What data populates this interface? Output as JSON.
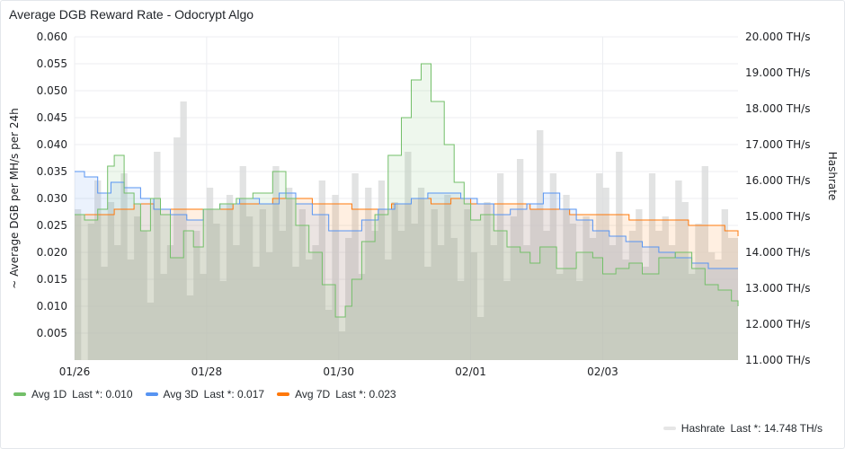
{
  "panel": {
    "title": "Average DGB Reward Rate - Odocrypt Algo"
  },
  "legend": {
    "items": [
      {
        "label": "Avg 1D",
        "stat": "Last *: 0.010",
        "color": "#73bf69"
      },
      {
        "label": "Avg 3D",
        "stat": "Last *: 0.017",
        "color": "#5794f2"
      },
      {
        "label": "Avg 7D",
        "stat": "Last *: 0.023",
        "color": "#ff780a"
      }
    ],
    "right_items": [
      {
        "label": "Hashrate",
        "stat": "Last *: 14.748 TH/s",
        "color": "#e6e6e6"
      }
    ]
  },
  "chart_data": {
    "type": "line",
    "x_tick_labels": [
      "01/26",
      "01/28",
      "01/30",
      "02/01",
      "02/03"
    ],
    "x_tick_pos": [
      0,
      2,
      4,
      6,
      8
    ],
    "x_range": [
      0,
      10.05
    ],
    "ylabel": "~ Average DGB per MH/s per 24h",
    "ylim": [
      0.0,
      0.06
    ],
    "y_ticks": [
      "0.005",
      "0.010",
      "0.015",
      "0.020",
      "0.025",
      "0.030",
      "0.035",
      "0.040",
      "0.045",
      "0.050",
      "0.055",
      "0.060"
    ],
    "y_tick_values": [
      0.005,
      0.01,
      0.015,
      0.02,
      0.025,
      0.03,
      0.035,
      0.04,
      0.045,
      0.05,
      0.055,
      0.06
    ],
    "y2label": "Hashrate",
    "y2lim": [
      11.0,
      20.0
    ],
    "y2_ticks": [
      "11.000 TH/s",
      "12.000 TH/s",
      "13.000 TH/s",
      "14.000 TH/s",
      "15.000 TH/s",
      "16.000 TH/s",
      "17.000 TH/s",
      "18.000 TH/s",
      "19.000 TH/s",
      "20.000 TH/s"
    ],
    "y2_tick_values": [
      11,
      12,
      13,
      14,
      15,
      16,
      17,
      18,
      19,
      20
    ],
    "series": [
      {
        "name": "Avg 1D",
        "axis": "left",
        "color": "#73bf69",
        "x": [
          0,
          0.15,
          0.35,
          0.5,
          0.6,
          0.75,
          0.9,
          1.0,
          1.15,
          1.3,
          1.45,
          1.65,
          1.8,
          1.95,
          2.2,
          2.45,
          2.7,
          3.0,
          3.2,
          3.35,
          3.55,
          3.75,
          3.95,
          4.1,
          4.2,
          4.35,
          4.55,
          4.75,
          4.95,
          5.1,
          5.25,
          5.4,
          5.6,
          5.75,
          5.9,
          6.0,
          6.15,
          6.35,
          6.55,
          6.75,
          6.9,
          7.05,
          7.3,
          7.6,
          7.85,
          8.0,
          8.2,
          8.4,
          8.6,
          8.85,
          9.1,
          9.35,
          9.55,
          9.75,
          9.95,
          10.05
        ],
        "y": [
          0.027,
          0.026,
          0.028,
          0.036,
          0.038,
          0.031,
          0.029,
          0.024,
          0.03,
          0.027,
          0.019,
          0.024,
          0.021,
          0.028,
          0.029,
          0.03,
          0.031,
          0.035,
          0.03,
          0.025,
          0.02,
          0.014,
          0.008,
          0.01,
          0.015,
          0.022,
          0.027,
          0.038,
          0.045,
          0.052,
          0.055,
          0.048,
          0.04,
          0.033,
          0.029,
          0.026,
          0.027,
          0.024,
          0.021,
          0.02,
          0.018,
          0.021,
          0.017,
          0.02,
          0.019,
          0.016,
          0.017,
          0.018,
          0.016,
          0.019,
          0.02,
          0.017,
          0.014,
          0.013,
          0.011,
          0.01
        ]
      },
      {
        "name": "Avg 3D",
        "axis": "left",
        "color": "#5794f2",
        "x": [
          0,
          0.15,
          0.35,
          0.55,
          0.75,
          1.0,
          1.2,
          1.45,
          1.7,
          1.95,
          2.2,
          2.5,
          2.8,
          3.1,
          3.35,
          3.6,
          3.85,
          4.1,
          4.35,
          4.6,
          4.85,
          5.1,
          5.35,
          5.6,
          5.85,
          6.1,
          6.35,
          6.6,
          6.85,
          7.1,
          7.35,
          7.6,
          7.85,
          8.1,
          8.35,
          8.6,
          8.85,
          9.1,
          9.35,
          9.6,
          9.85,
          10.05
        ],
        "y": [
          0.035,
          0.034,
          0.031,
          0.033,
          0.032,
          0.03,
          0.028,
          0.027,
          0.026,
          0.028,
          0.029,
          0.03,
          0.029,
          0.031,
          0.029,
          0.027,
          0.024,
          0.024,
          0.026,
          0.028,
          0.029,
          0.03,
          0.031,
          0.031,
          0.03,
          0.029,
          0.027,
          0.028,
          0.029,
          0.031,
          0.028,
          0.026,
          0.024,
          0.023,
          0.022,
          0.021,
          0.02,
          0.019,
          0.018,
          0.017,
          0.017,
          0.017
        ]
      },
      {
        "name": "Avg 7D",
        "axis": "left",
        "color": "#ff780a",
        "x": [
          0,
          0.3,
          0.6,
          0.9,
          1.2,
          1.5,
          1.8,
          2.1,
          2.4,
          2.7,
          3.0,
          3.3,
          3.6,
          3.9,
          4.2,
          4.5,
          4.8,
          5.1,
          5.4,
          5.7,
          6.0,
          6.3,
          6.6,
          6.9,
          7.2,
          7.5,
          7.8,
          8.1,
          8.4,
          8.7,
          9.0,
          9.3,
          9.6,
          9.85,
          10.05
        ],
        "y": [
          0.027,
          0.027,
          0.028,
          0.029,
          0.028,
          0.028,
          0.028,
          0.028,
          0.029,
          0.029,
          0.03,
          0.03,
          0.029,
          0.029,
          0.028,
          0.028,
          0.029,
          0.03,
          0.029,
          0.03,
          0.029,
          0.029,
          0.029,
          0.028,
          0.028,
          0.027,
          0.027,
          0.027,
          0.026,
          0.026,
          0.026,
          0.025,
          0.025,
          0.024,
          0.023
        ]
      },
      {
        "name": "Hashrate",
        "axis": "right",
        "color": "#d8d9da",
        "x": [
          0,
          0.1,
          0.2,
          0.3,
          0.4,
          0.5,
          0.6,
          0.7,
          0.8,
          0.9,
          1.0,
          1.1,
          1.2,
          1.3,
          1.4,
          1.5,
          1.6,
          1.7,
          1.8,
          1.9,
          2.0,
          2.1,
          2.2,
          2.3,
          2.4,
          2.5,
          2.6,
          2.7,
          2.8,
          2.9,
          3.0,
          3.1,
          3.2,
          3.3,
          3.4,
          3.5,
          3.6,
          3.7,
          3.8,
          3.9,
          4.0,
          4.1,
          4.2,
          4.3,
          4.4,
          4.5,
          4.6,
          4.7,
          4.8,
          4.9,
          5.0,
          5.1,
          5.2,
          5.3,
          5.4,
          5.5,
          5.6,
          5.7,
          5.8,
          5.9,
          6.0,
          6.1,
          6.2,
          6.3,
          6.4,
          6.5,
          6.6,
          6.7,
          6.8,
          6.9,
          7.0,
          7.1,
          7.2,
          7.3,
          7.4,
          7.5,
          7.6,
          7.7,
          7.8,
          7.9,
          8.0,
          8.1,
          8.2,
          8.3,
          8.4,
          8.5,
          8.6,
          8.7,
          8.8,
          8.9,
          9.0,
          9.1,
          9.2,
          9.3,
          9.4,
          9.5,
          9.6,
          9.7,
          9.8,
          9.9,
          10.05
        ],
        "y": [
          15.2,
          11.0,
          14.8,
          16.0,
          13.6,
          15.4,
          14.2,
          16.2,
          13.8,
          15.0,
          14.6,
          12.6,
          16.8,
          13.4,
          14.2,
          17.2,
          18.2,
          12.8,
          14.6,
          13.4,
          15.8,
          14.8,
          13.2,
          15.6,
          14.2,
          16.4,
          15.0,
          13.6,
          15.2,
          14.0,
          16.4,
          14.6,
          15.8,
          13.6,
          15.2,
          13.8,
          14.2,
          16.0,
          12.4,
          15.6,
          11.8,
          14.4,
          16.2,
          13.4,
          15.8,
          14.6,
          16.0,
          13.8,
          15.4,
          14.6,
          16.8,
          14.8,
          15.8,
          13.6,
          15.2,
          14.2,
          15.6,
          14.4,
          13.2,
          15.2,
          14.0,
          12.2,
          15.4,
          14.2,
          16.2,
          13.2,
          15.0,
          16.6,
          14.2,
          15.2,
          17.4,
          14.6,
          16.2,
          13.4,
          15.6,
          14.8,
          13.2,
          15.0,
          14.4,
          16.2,
          15.8,
          14.2,
          16.8,
          13.8,
          14.6,
          15.2,
          13.6,
          16.2,
          14.6,
          15.0,
          14.2,
          16.0,
          15.4,
          13.4,
          14.8,
          16.4,
          14.0,
          13.8,
          15.2,
          14.4,
          14.7
        ]
      }
    ]
  }
}
